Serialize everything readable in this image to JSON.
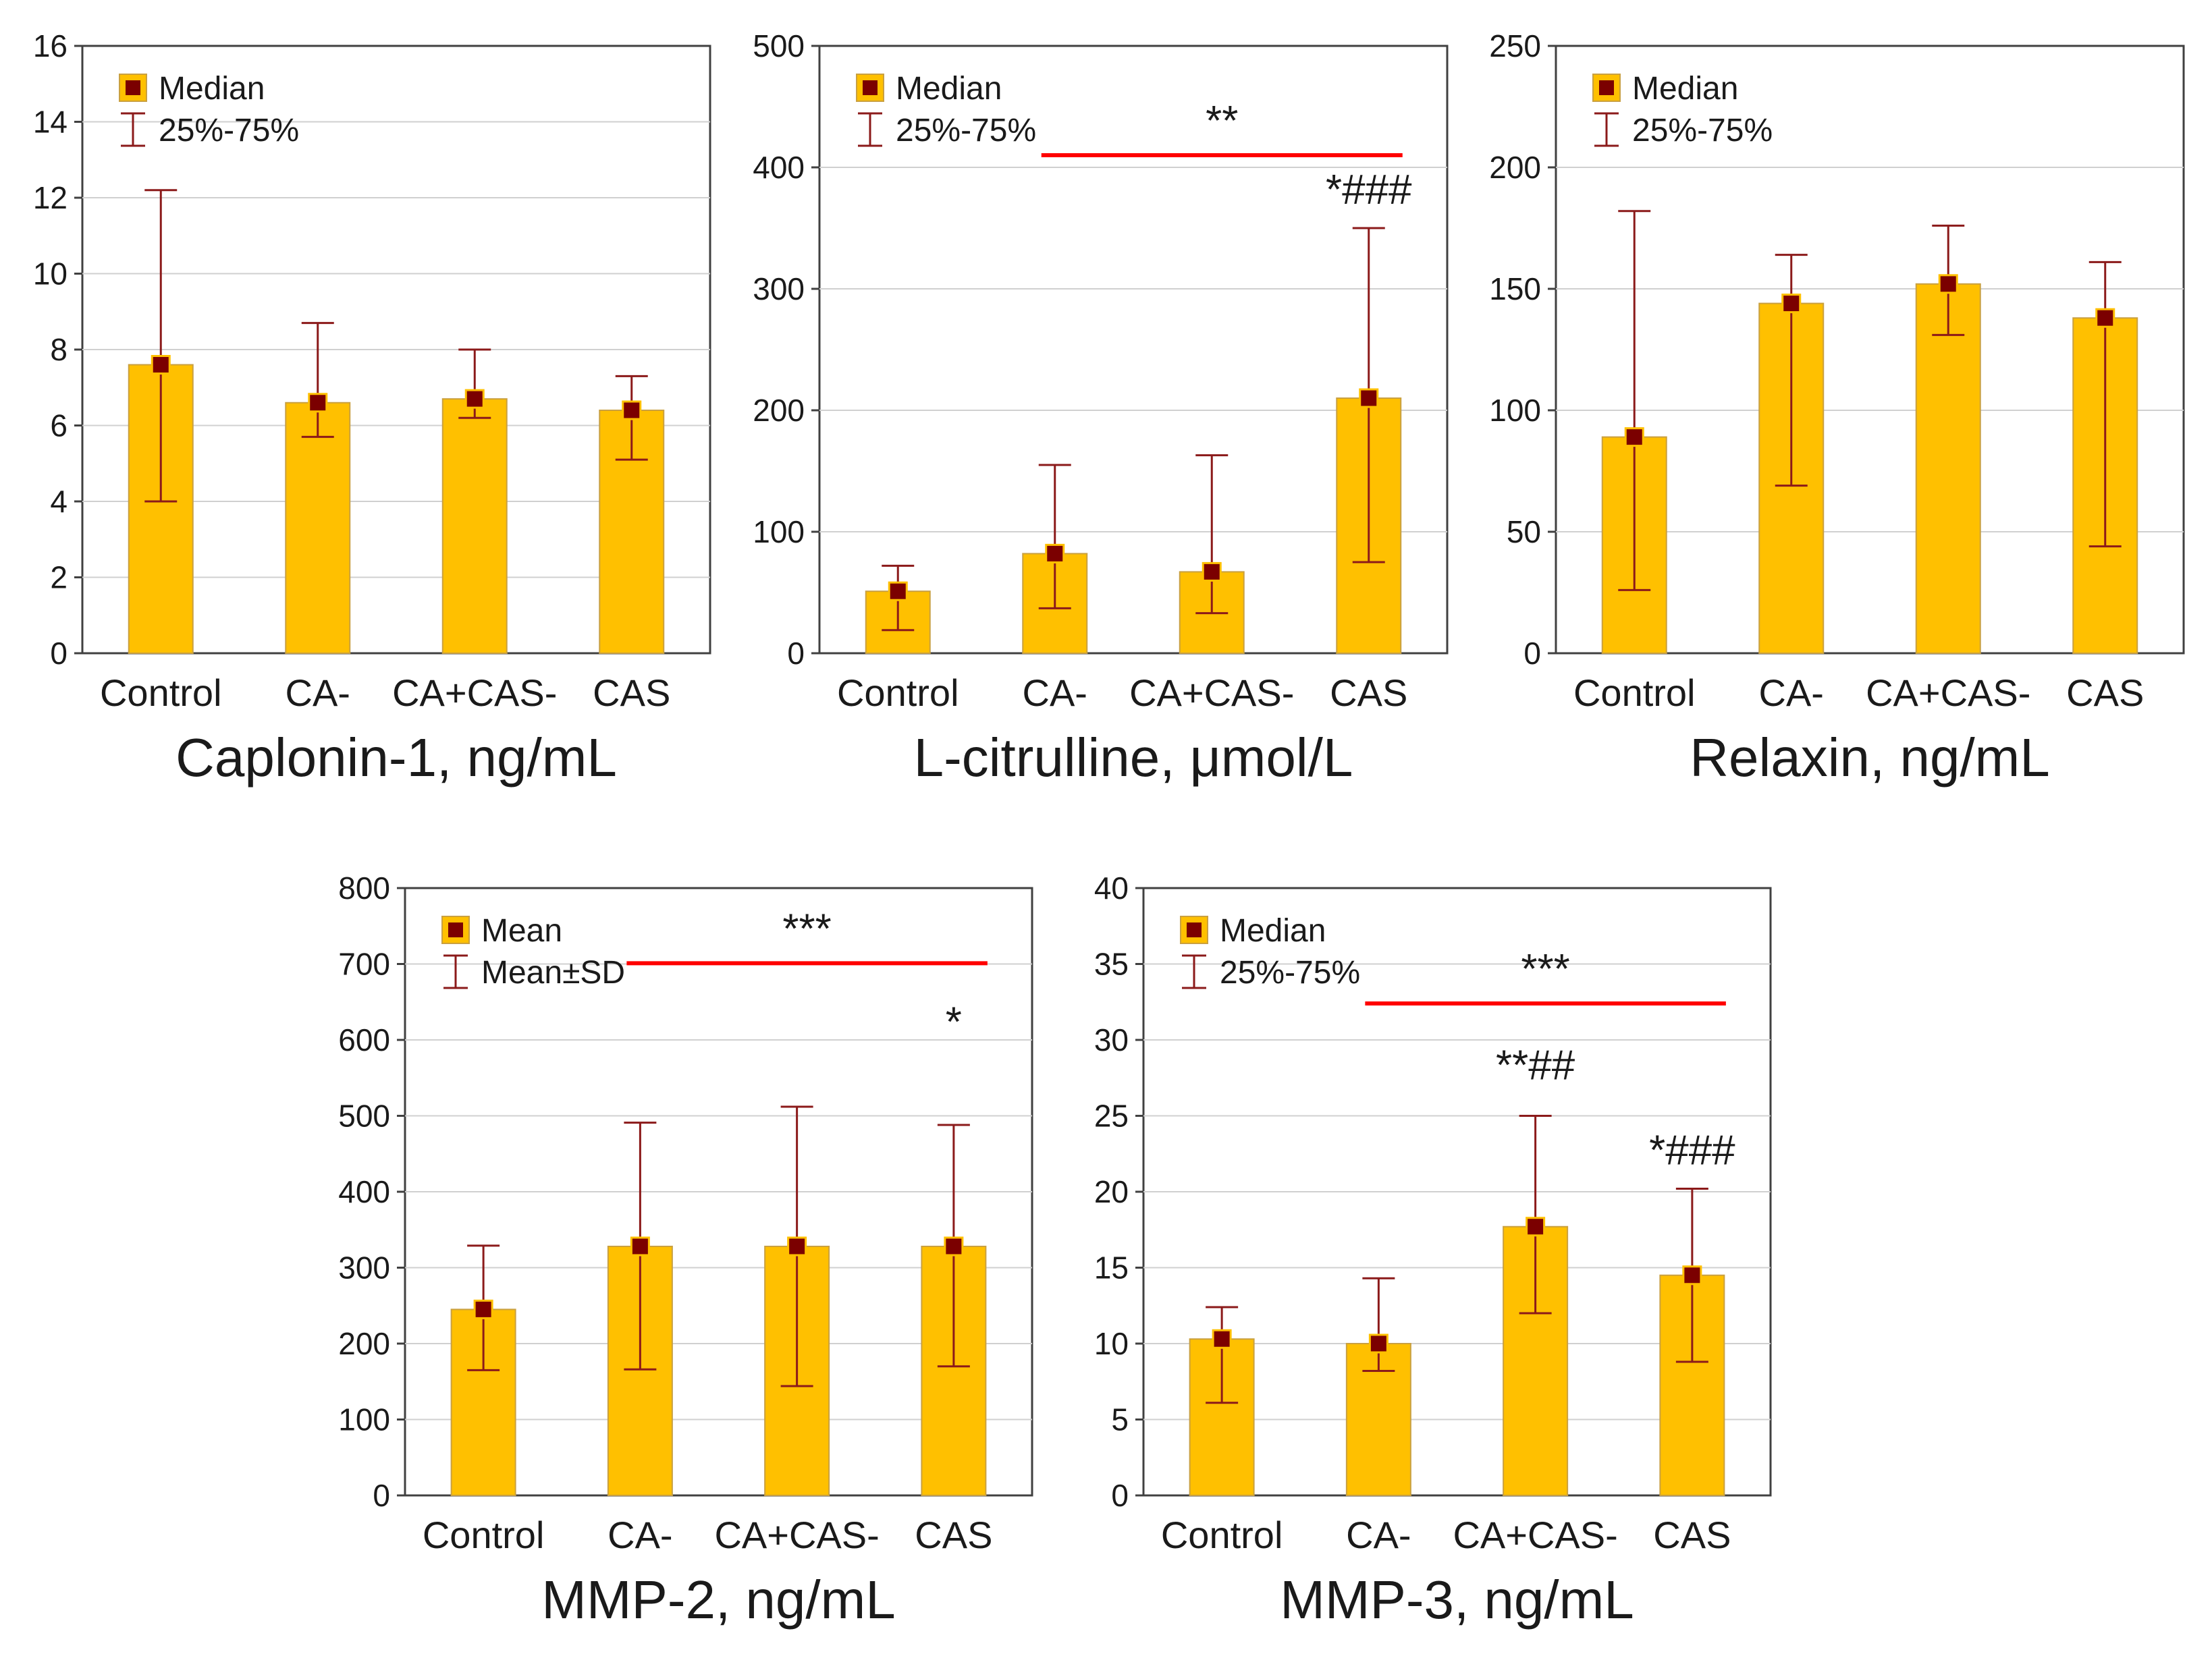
{
  "colors": {
    "bar_fill": "#FFC000",
    "bar_edge": "#C9A040",
    "marker": "#7B0000",
    "errorbar": "#8B1A1A",
    "sig_line": "#FF0000",
    "grid": "#D0D0D0",
    "axis": "#404040"
  },
  "chart_data": [
    {
      "type": "bar",
      "title": "Caplonin-1, ng/mL",
      "categories": [
        "Control",
        "CA-",
        "CA+CAS-",
        "CAS"
      ],
      "values": [
        7.6,
        6.6,
        6.7,
        6.4
      ],
      "error_low": [
        4.0,
        5.7,
        6.2,
        5.1
      ],
      "error_high": [
        12.2,
        8.7,
        8.0,
        7.3
      ],
      "ylim": [
        0,
        16
      ],
      "yticks": [
        0,
        2,
        4,
        6,
        8,
        10,
        12,
        14,
        16
      ],
      "legend": {
        "marker_label": "Median",
        "range_label": "25%-75%"
      },
      "sig_lines": [],
      "bar_annotations": []
    },
    {
      "type": "bar",
      "title": "L-citrulline, μmol/L",
      "categories": [
        "Control",
        "CA-",
        "CA+CAS-",
        "CAS"
      ],
      "values": [
        51,
        82,
        67,
        210
      ],
      "error_low": [
        19,
        37,
        33,
        75
      ],
      "error_high": [
        72,
        155,
        163,
        350
      ],
      "ylim": [
        0,
        500
      ],
      "yticks": [
        0,
        100,
        200,
        300,
        400,
        500
      ],
      "legend": {
        "marker_label": "Median",
        "range_label": "25%-75%"
      },
      "sig_lines": [
        {
          "from": 1,
          "to": 3,
          "y": 410,
          "label": "**"
        }
      ],
      "bar_annotations": [
        {
          "index": 3,
          "y": 370,
          "label": "*###"
        }
      ]
    },
    {
      "type": "bar",
      "title": "Relaxin, ng/mL",
      "categories": [
        "Control",
        "CA-",
        "CA+CAS-",
        "CAS"
      ],
      "values": [
        89,
        144,
        152,
        138
      ],
      "error_low": [
        26,
        69,
        131,
        44
      ],
      "error_high": [
        182,
        164,
        176,
        161
      ],
      "ylim": [
        0,
        250
      ],
      "yticks": [
        0,
        50,
        100,
        150,
        200,
        250
      ],
      "legend": {
        "marker_label": "Median",
        "range_label": "25%-75%"
      },
      "sig_lines": [],
      "bar_annotations": []
    },
    {
      "type": "bar",
      "title": "MMP-2, ng/mL",
      "categories": [
        "Control",
        "CA-",
        "CA+CAS-",
        "CAS"
      ],
      "values": [
        245,
        328,
        328,
        328
      ],
      "error_low": [
        165,
        166,
        144,
        170
      ],
      "error_high": [
        329,
        491,
        512,
        488
      ],
      "ylim": [
        0,
        800
      ],
      "yticks": [
        0,
        100,
        200,
        300,
        400,
        500,
        600,
        700,
        800
      ],
      "legend": {
        "marker_label": "Mean",
        "range_label": "Mean±SD"
      },
      "sig_lines": [
        {
          "from": 1,
          "to": 3,
          "y": 701,
          "label": "***"
        }
      ],
      "bar_annotations": [
        {
          "index": 3,
          "y": 605,
          "label": "*"
        }
      ]
    },
    {
      "type": "bar",
      "title": "MMP-3, ng/mL",
      "categories": [
        "Control",
        "CA-",
        "CA+CAS-",
        "CAS"
      ],
      "values": [
        10.3,
        10.0,
        17.7,
        14.5
      ],
      "error_low": [
        6.1,
        8.2,
        12.0,
        8.8
      ],
      "error_high": [
        12.4,
        14.3,
        25.0,
        20.2
      ],
      "ylim": [
        0,
        40
      ],
      "yticks": [
        0,
        5,
        10,
        15,
        20,
        25,
        30,
        35,
        40
      ],
      "legend": {
        "marker_label": "Median",
        "range_label": "25%-75%"
      },
      "sig_lines": [
        {
          "from": 1,
          "to": 3,
          "y": 32.4,
          "label": "***"
        }
      ],
      "bar_annotations": [
        {
          "index": 2,
          "y": 27.4,
          "label": "**##"
        },
        {
          "index": 3,
          "y": 21.8,
          "label": "*###"
        }
      ]
    }
  ]
}
